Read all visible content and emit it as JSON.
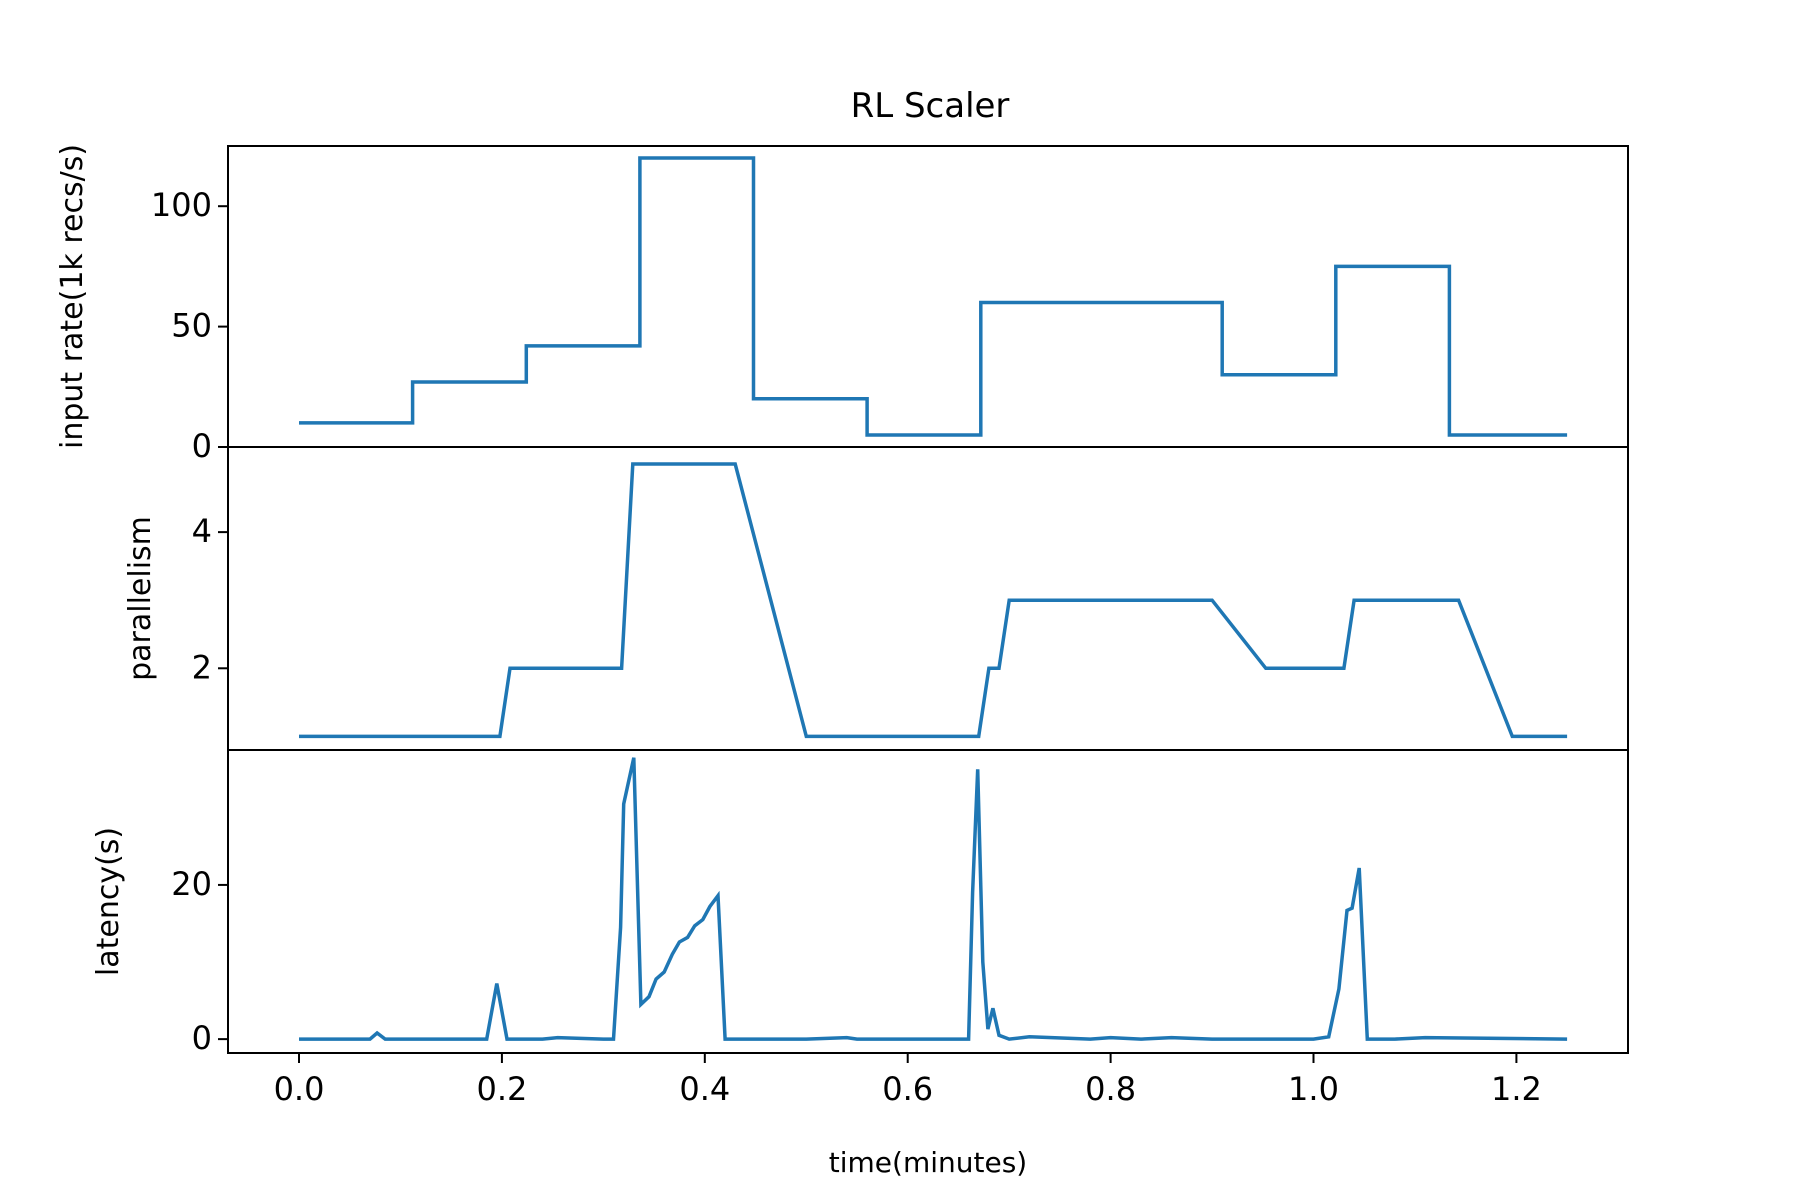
{
  "chart_data": {
    "type": "line",
    "title": "RL Scaler",
    "xlabel": "time(minutes)",
    "xlim": [
      -0.07,
      1.31
    ],
    "x_ticks": [
      0.0,
      0.2,
      0.4,
      0.6,
      0.8,
      1.0,
      1.2
    ],
    "x_tick_labels": [
      "0.0",
      "0.2",
      "0.4",
      "0.6",
      "0.8",
      "1.0",
      "1.2"
    ],
    "grid": false,
    "line_color": "#1f77b4",
    "panels": [
      {
        "ylabel": "input rate(1k recs/s)",
        "ylim": [
          0,
          125
        ],
        "y_ticks": [
          0,
          50,
          100
        ],
        "y_tick_labels": [
          "0",
          "50",
          "100"
        ],
        "series": {
          "x": [
            0.0,
            0.112,
            0.112,
            0.224,
            0.224,
            0.336,
            0.336,
            0.448,
            0.448,
            0.56,
            0.56,
            0.672,
            0.672,
            0.91,
            0.91,
            1.022,
            1.022,
            1.134,
            1.134,
            1.25
          ],
          "y": [
            10,
            10,
            27,
            27,
            42,
            42,
            120,
            120,
            20,
            20,
            5,
            5,
            60,
            60,
            30,
            30,
            75,
            75,
            5,
            5
          ]
        }
      },
      {
        "ylabel": "parallelism",
        "ylim": [
          0.8,
          5.25
        ],
        "y_ticks": [
          2,
          4
        ],
        "y_tick_labels": [
          "2",
          "4"
        ],
        "series": {
          "x": [
            0.0,
            0.198,
            0.208,
            0.318,
            0.329,
            0.43,
            0.5,
            0.67,
            0.68,
            0.69,
            0.7,
            0.9,
            0.953,
            1.03,
            1.04,
            1.143,
            1.196,
            1.25
          ],
          "y": [
            1,
            1,
            2,
            2,
            5,
            5,
            1,
            1,
            2,
            2,
            3,
            3,
            2,
            2,
            3,
            3,
            1,
            1
          ]
        }
      },
      {
        "ylabel": "latency(s)",
        "ylim": [
          -1.8,
          37.5
        ],
        "y_ticks": [
          0,
          20
        ],
        "y_tick_labels": [
          "0",
          "20"
        ],
        "series": {
          "x": [
            0.0,
            0.07,
            0.077,
            0.085,
            0.15,
            0.185,
            0.195,
            0.205,
            0.24,
            0.255,
            0.3,
            0.31,
            0.317,
            0.32,
            0.33,
            0.337,
            0.345,
            0.352,
            0.36,
            0.368,
            0.375,
            0.383,
            0.39,
            0.398,
            0.405,
            0.413,
            0.42,
            0.428,
            0.5,
            0.54,
            0.55,
            0.65,
            0.66,
            0.664,
            0.669,
            0.674,
            0.679,
            0.684,
            0.69,
            0.7,
            0.72,
            0.78,
            0.8,
            0.83,
            0.86,
            0.9,
            1.0,
            1.015,
            1.025,
            1.033,
            1.038,
            1.045,
            1.053,
            1.08,
            1.11,
            1.25
          ],
          "y": [
            0,
            0,
            0.8,
            0,
            0,
            0,
            7.2,
            0,
            0,
            0.2,
            0,
            0,
            14.5,
            30.5,
            36.5,
            4.5,
            5.5,
            7.8,
            8.7,
            11,
            12.6,
            13.2,
            14.7,
            15.5,
            17.2,
            18.6,
            0,
            0,
            0,
            0.2,
            0,
            0,
            0,
            19,
            35,
            10,
            1.3,
            4,
            0.5,
            0,
            0.3,
            0,
            0.2,
            0,
            0.2,
            0,
            0,
            0.3,
            6.5,
            16.7,
            17,
            22.2,
            0,
            0,
            0.2,
            0
          ]
        }
      }
    ]
  }
}
